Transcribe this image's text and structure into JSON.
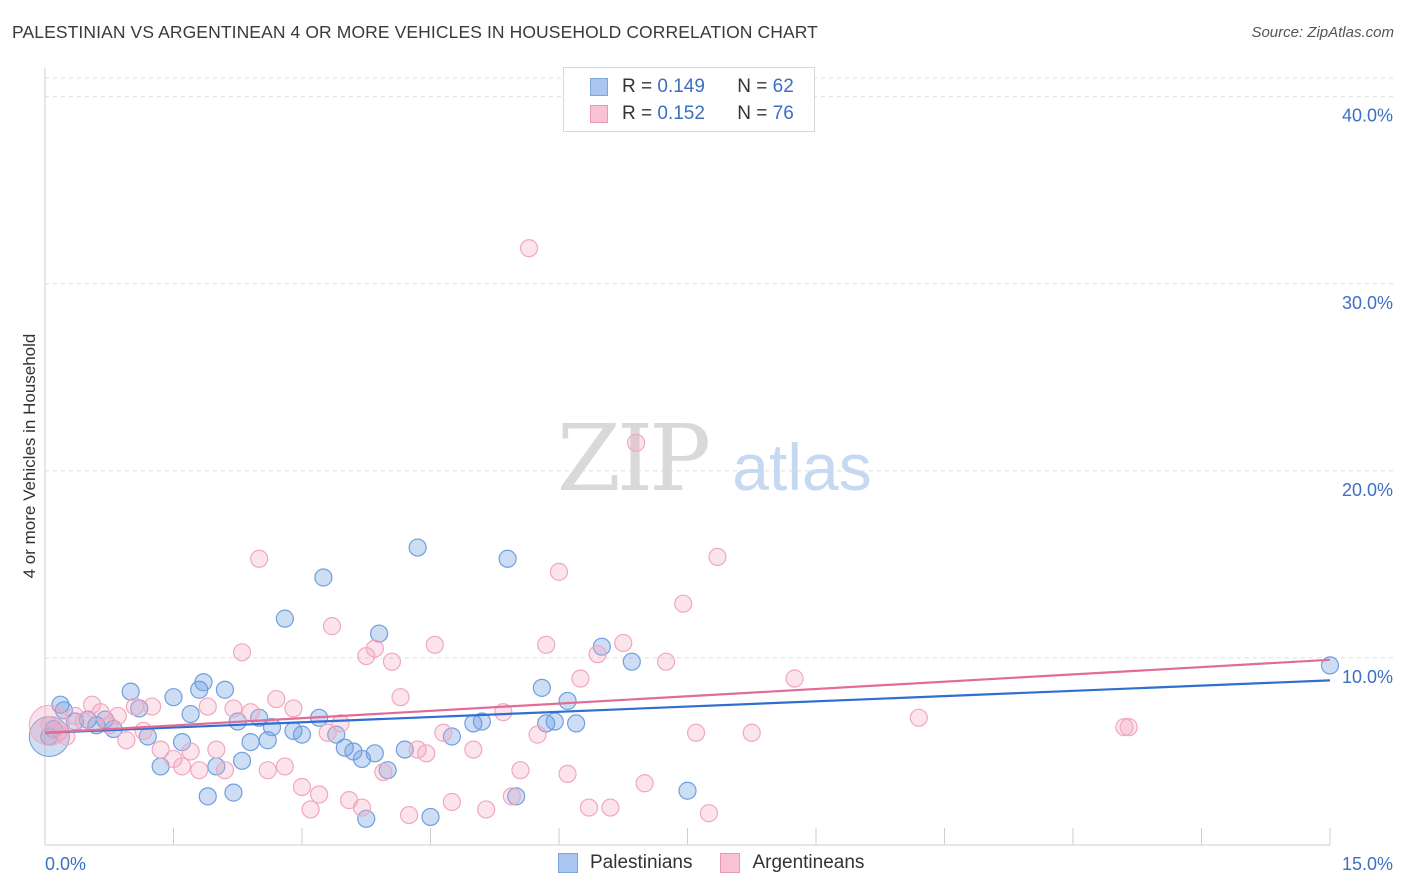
{
  "title": "PALESTINIAN VS ARGENTINEAN 4 OR MORE VEHICLES IN HOUSEHOLD CORRELATION CHART",
  "source": "Source: ZipAtlas.com",
  "watermark": {
    "zip": "ZIP",
    "atlas": "atlas"
  },
  "legend": {
    "rows": [
      {
        "r_label": "R =",
        "r_value": "0.149",
        "n_label": "N =",
        "n_value": "62",
        "color": "#a9c6f0",
        "border": "#7da6df"
      },
      {
        "r_label": "R =",
        "r_value": "0.152",
        "n_label": "N =",
        "n_value": "76",
        "color": "#f7c3d3",
        "border": "#ea9ab4"
      }
    ]
  },
  "bottom_legend": [
    {
      "label": "Palestinians",
      "color": "#a9c6f0",
      "border": "#7da6df"
    },
    {
      "label": "Argentineans",
      "color": "#f7c3d3",
      "border": "#ea9ab4"
    }
  ],
  "chart_data": {
    "type": "scatter",
    "title": "PALESTINIAN VS ARGENTINEAN 4 OR MORE VEHICLES IN HOUSEHOLD CORRELATION CHART",
    "xlabel": "",
    "ylabel": "4 or more Vehicles in Household",
    "xlim": [
      0,
      15
    ],
    "ylim": [
      0,
      41
    ],
    "x_tick_labels": [
      "0.0%",
      "15.0%"
    ],
    "y_ticks": [
      10,
      20,
      30,
      40
    ],
    "y_tick_labels": [
      "10.0%",
      "20.0%",
      "30.0%",
      "40.0%"
    ],
    "grid": true,
    "series": [
      {
        "name": "Palestinians",
        "color": "#6f9fe0",
        "line_color": "#2e6fd0",
        "trend": {
          "x": [
            0,
            15
          ],
          "y": [
            6.0,
            8.8
          ]
        },
        "points": [
          [
            0.05,
            5.8
          ],
          [
            0.1,
            6.2
          ],
          [
            0.18,
            7.5
          ],
          [
            0.22,
            7.2
          ],
          [
            0.35,
            6.6
          ],
          [
            0.5,
            6.7
          ],
          [
            0.6,
            6.4
          ],
          [
            0.7,
            6.7
          ],
          [
            0.8,
            6.2
          ],
          [
            1.0,
            8.2
          ],
          [
            1.1,
            7.3
          ],
          [
            1.2,
            5.8
          ],
          [
            1.35,
            4.2
          ],
          [
            1.5,
            7.9
          ],
          [
            1.6,
            5.5
          ],
          [
            1.7,
            7.0
          ],
          [
            1.8,
            8.3
          ],
          [
            1.85,
            8.7
          ],
          [
            1.9,
            2.6
          ],
          [
            2.0,
            4.2
          ],
          [
            2.1,
            8.3
          ],
          [
            2.2,
            2.8
          ],
          [
            2.25,
            6.6
          ],
          [
            2.3,
            4.5
          ],
          [
            2.4,
            5.5
          ],
          [
            2.5,
            6.8
          ],
          [
            2.6,
            5.6
          ],
          [
            2.65,
            6.3
          ],
          [
            2.8,
            12.1
          ],
          [
            2.9,
            6.1
          ],
          [
            3.0,
            5.9
          ],
          [
            3.2,
            6.8
          ],
          [
            3.25,
            14.3
          ],
          [
            3.4,
            5.9
          ],
          [
            3.5,
            5.2
          ],
          [
            3.6,
            5.0
          ],
          [
            3.7,
            4.6
          ],
          [
            3.75,
            1.4
          ],
          [
            3.85,
            4.9
          ],
          [
            3.9,
            11.3
          ],
          [
            4.0,
            4.0
          ],
          [
            4.2,
            5.1
          ],
          [
            4.35,
            15.9
          ],
          [
            4.5,
            1.5
          ],
          [
            4.75,
            5.8
          ],
          [
            5.0,
            6.5
          ],
          [
            5.1,
            6.6
          ],
          [
            5.4,
            15.3
          ],
          [
            5.5,
            2.6
          ],
          [
            5.8,
            8.4
          ],
          [
            5.85,
            6.5
          ],
          [
            5.95,
            6.6
          ],
          [
            6.1,
            7.7
          ],
          [
            6.2,
            6.5
          ],
          [
            6.5,
            10.6
          ],
          [
            6.85,
            9.8
          ],
          [
            7.5,
            2.9
          ],
          [
            15.0,
            9.6
          ]
        ],
        "big_points": [
          [
            0.05,
            5.8
          ]
        ]
      },
      {
        "name": "Argentineans",
        "color": "#f2a7bf",
        "line_color": "#e06c97",
        "trend": {
          "x": [
            0,
            15
          ],
          "y": [
            6.0,
            9.9
          ]
        },
        "points": [
          [
            0.05,
            6.4
          ],
          [
            0.15,
            6.0
          ],
          [
            0.25,
            5.8
          ],
          [
            0.35,
            6.9
          ],
          [
            0.45,
            6.6
          ],
          [
            0.55,
            7.5
          ],
          [
            0.65,
            7.1
          ],
          [
            0.75,
            6.4
          ],
          [
            0.85,
            6.9
          ],
          [
            0.95,
            5.6
          ],
          [
            1.05,
            7.4
          ],
          [
            1.15,
            6.1
          ],
          [
            1.25,
            7.4
          ],
          [
            1.35,
            5.1
          ],
          [
            1.5,
            4.6
          ],
          [
            1.6,
            4.2
          ],
          [
            1.7,
            5.0
          ],
          [
            1.8,
            4.0
          ],
          [
            1.9,
            7.4
          ],
          [
            2.0,
            5.1
          ],
          [
            2.1,
            4.0
          ],
          [
            2.2,
            7.3
          ],
          [
            2.3,
            10.3
          ],
          [
            2.4,
            7.1
          ],
          [
            2.5,
            15.3
          ],
          [
            2.6,
            4.0
          ],
          [
            2.7,
            7.8
          ],
          [
            2.8,
            4.2
          ],
          [
            2.9,
            7.3
          ],
          [
            3.0,
            3.1
          ],
          [
            3.1,
            1.9
          ],
          [
            3.2,
            2.7
          ],
          [
            3.3,
            6.0
          ],
          [
            3.35,
            11.7
          ],
          [
            3.45,
            6.5
          ],
          [
            3.55,
            2.4
          ],
          [
            3.7,
            2.0
          ],
          [
            3.75,
            10.1
          ],
          [
            3.85,
            10.5
          ],
          [
            3.95,
            3.9
          ],
          [
            4.05,
            9.8
          ],
          [
            4.15,
            7.9
          ],
          [
            4.25,
            1.6
          ],
          [
            4.35,
            5.1
          ],
          [
            4.45,
            4.9
          ],
          [
            4.55,
            10.7
          ],
          [
            4.65,
            6.0
          ],
          [
            4.75,
            2.3
          ],
          [
            5.0,
            5.1
          ],
          [
            5.15,
            1.9
          ],
          [
            5.35,
            7.1
          ],
          [
            5.45,
            2.6
          ],
          [
            5.55,
            4.0
          ],
          [
            5.65,
            31.9
          ],
          [
            5.75,
            5.9
          ],
          [
            5.85,
            10.7
          ],
          [
            6.0,
            14.6
          ],
          [
            6.1,
            3.8
          ],
          [
            6.25,
            8.9
          ],
          [
            6.35,
            2.0
          ],
          [
            6.45,
            10.2
          ],
          [
            6.6,
            2.0
          ],
          [
            6.75,
            10.8
          ],
          [
            6.9,
            21.5
          ],
          [
            7.0,
            3.3
          ],
          [
            7.25,
            9.8
          ],
          [
            7.45,
            12.9
          ],
          [
            7.6,
            6.0
          ],
          [
            7.75,
            1.7
          ],
          [
            7.85,
            15.4
          ],
          [
            8.25,
            6.0
          ],
          [
            8.75,
            8.9
          ],
          [
            10.2,
            6.8
          ],
          [
            12.6,
            6.3
          ],
          [
            12.65,
            6.3
          ]
        ],
        "big_points": [
          [
            0.05,
            6.4
          ]
        ]
      }
    ]
  }
}
